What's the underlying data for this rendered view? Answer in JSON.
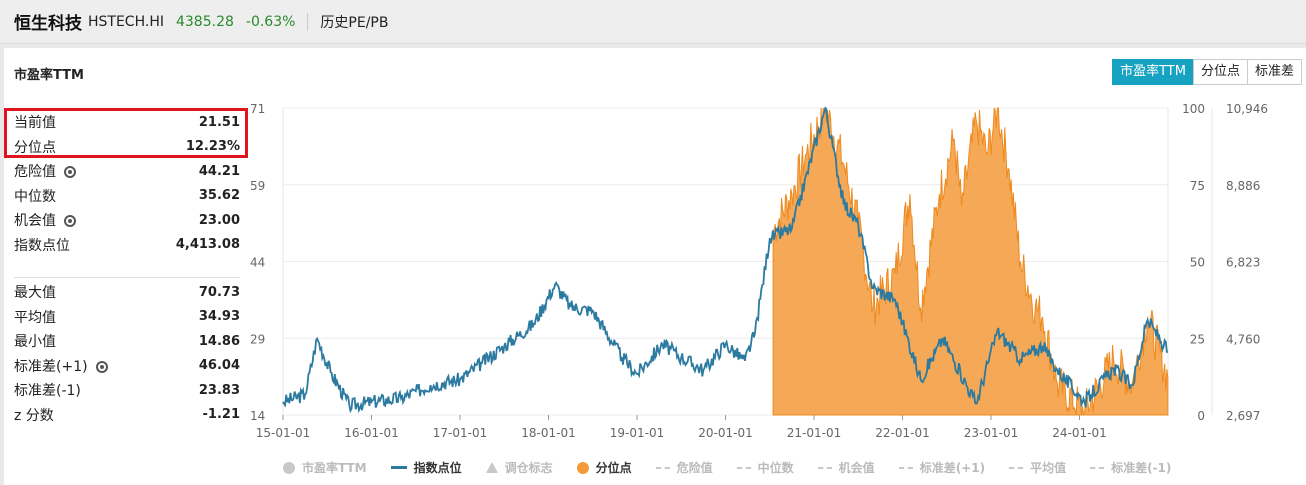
{
  "header": {
    "name": "恒生科技",
    "code": "HSTECH.HI",
    "price": "4385.28",
    "change": "-0.63%",
    "link": "历史PE/PB",
    "price_color": "#2a8a2a"
  },
  "panel": {
    "title": "市盈率TTM",
    "tabs": [
      "市盈率TTM",
      "分位点",
      "标准差"
    ]
  },
  "stats": {
    "group1": [
      {
        "label": "当前值",
        "value": "21.51"
      },
      {
        "label": "分位点",
        "value": "12.23%"
      },
      {
        "label": "危险值",
        "value": "44.21",
        "gear": true
      },
      {
        "label": "中位数",
        "value": "35.62"
      },
      {
        "label": "机会值",
        "value": "23.00",
        "gear": true
      },
      {
        "label": "指数点位",
        "value": "4,413.08"
      }
    ],
    "group2": [
      {
        "label": "最大值",
        "value": "70.73"
      },
      {
        "label": "平均值",
        "value": "34.93"
      },
      {
        "label": "最小值",
        "value": "14.86"
      },
      {
        "label": "标准差(+1)",
        "value": "46.04",
        "gear": true
      },
      {
        "label": "标准差(-1)",
        "value": "23.83"
      },
      {
        "label": "z 分数",
        "value": "-1.21"
      }
    ]
  },
  "chart_data": {
    "type": "area",
    "x_ticks": [
      "15-01-01",
      "16-01-01",
      "17-01-01",
      "18-01-01",
      "19-01-01",
      "20-01-01",
      "21-01-01",
      "22-01-01",
      "23-01-01",
      "24-01-01"
    ],
    "y_left_ticks": [
      "71",
      "59",
      "44",
      "29",
      "14"
    ],
    "y_mid_ticks": [
      "100",
      "75",
      "50",
      "25",
      "0"
    ],
    "y_right_ticks": [
      "10,946",
      "8,886",
      "6,823",
      "4,760",
      "2,697"
    ],
    "ylim_index": [
      2697,
      10946
    ],
    "ylim_percentile": [
      0,
      100
    ],
    "series": [
      {
        "name": "指数点位",
        "color": "#2c7aa0",
        "points": [
          [
            "15-01-01",
            3050
          ],
          [
            "15-04-01",
            3250
          ],
          [
            "15-05-20",
            4750
          ],
          [
            "15-07-15",
            3850
          ],
          [
            "15-10-01",
            2950
          ],
          [
            "16-01-01",
            3050
          ],
          [
            "16-05-01",
            3150
          ],
          [
            "16-09-01",
            3500
          ],
          [
            "17-01-01",
            3650
          ],
          [
            "17-04-01",
            4100
          ],
          [
            "17-07-01",
            4550
          ],
          [
            "17-11-01",
            5150
          ],
          [
            "18-01-28",
            6200
          ],
          [
            "18-04-01",
            5600
          ],
          [
            "18-07-01",
            5500
          ],
          [
            "18-10-30",
            4250
          ],
          [
            "19-01-01",
            3800
          ],
          [
            "19-04-15",
            4600
          ],
          [
            "19-07-01",
            4250
          ],
          [
            "19-10-01",
            3900
          ],
          [
            "20-01-01",
            4600
          ],
          [
            "20-03-20",
            4150
          ],
          [
            "20-05-01",
            4900
          ],
          [
            "20-07-01",
            7450
          ],
          [
            "20-10-01",
            7700
          ],
          [
            "21-02-17",
            10946
          ],
          [
            "21-05-01",
            8400
          ],
          [
            "21-07-01",
            7800
          ],
          [
            "21-09-01",
            6100
          ],
          [
            "21-12-01",
            5800
          ],
          [
            "22-03-15",
            3650
          ],
          [
            "22-06-15",
            4750
          ],
          [
            "22-10-31",
            3000
          ],
          [
            "23-01-27",
            4950
          ],
          [
            "23-05-01",
            4200
          ],
          [
            "23-07-31",
            4550
          ],
          [
            "23-10-01",
            3900
          ],
          [
            "24-01-22",
            3050
          ],
          [
            "24-05-20",
            3950
          ],
          [
            "24-08-05",
            3500
          ],
          [
            "24-10-08",
            5250
          ],
          [
            "24-12-31",
            4400
          ]
        ]
      },
      {
        "name": "分位点",
        "color": "#f39a3a",
        "points": [
          [
            "20-07-15",
            0
          ],
          [
            "20-07-15",
            60
          ],
          [
            "20-10-01",
            72
          ],
          [
            "20-12-01",
            85
          ],
          [
            "21-02-17",
            100
          ],
          [
            "21-05-01",
            82
          ],
          [
            "21-07-01",
            62
          ],
          [
            "21-09-01",
            35
          ],
          [
            "21-12-01",
            46
          ],
          [
            "22-02-01",
            72
          ],
          [
            "22-03-15",
            35
          ],
          [
            "22-06-01",
            72
          ],
          [
            "22-08-01",
            90
          ],
          [
            "22-09-01",
            68
          ],
          [
            "22-11-01",
            96
          ],
          [
            "22-12-15",
            85
          ],
          [
            "23-01-27",
            100
          ],
          [
            "23-03-15",
            80
          ],
          [
            "23-05-01",
            50
          ],
          [
            "23-07-01",
            35
          ],
          [
            "23-08-01",
            32
          ],
          [
            "23-10-01",
            10
          ],
          [
            "24-01-22",
            1
          ],
          [
            "24-05-20",
            18
          ],
          [
            "24-08-05",
            10
          ],
          [
            "24-10-08",
            32
          ],
          [
            "24-12-31",
            12
          ]
        ]
      }
    ],
    "legend": [
      {
        "label": "市盈率TTM",
        "active": false,
        "marker": "circle",
        "color": "#c8c8c8"
      },
      {
        "label": "指数点位",
        "active": true,
        "marker": "line",
        "color": "#2c7aa0"
      },
      {
        "label": "调仓标志",
        "active": false,
        "marker": "triangle",
        "color": "#c8c8c8"
      },
      {
        "label": "分位点",
        "active": true,
        "marker": "circle",
        "color": "#f39a3a"
      },
      {
        "label": "危险值",
        "active": false,
        "marker": "dash",
        "color": "#c8c8c8"
      },
      {
        "label": "中位数",
        "active": false,
        "marker": "dash",
        "color": "#c8c8c8"
      },
      {
        "label": "机会值",
        "active": false,
        "marker": "dash",
        "color": "#c8c8c8"
      },
      {
        "label": "标准差(+1)",
        "active": false,
        "marker": "dash",
        "color": "#c8c8c8"
      },
      {
        "label": "平均值",
        "active": false,
        "marker": "dash",
        "color": "#c8c8c8"
      },
      {
        "label": "标准差(-1)",
        "active": false,
        "marker": "dash",
        "color": "#c8c8c8"
      }
    ],
    "grid": true,
    "legend_position": "bottom"
  },
  "colors": {
    "accent": "#17a2c2",
    "highlight_box": "#e0141e"
  }
}
